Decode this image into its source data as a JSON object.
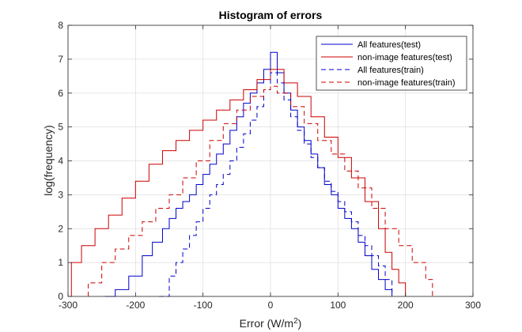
{
  "chart_data": {
    "type": "line",
    "title": "Histogram of errors",
    "xlabel": "Error (W/m",
    "xlabel_sup": "2",
    "xlabel_end": ")",
    "ylabel": "log(frequency)",
    "xlim": [
      -300,
      300
    ],
    "ylim": [
      0,
      8
    ],
    "xticks": [
      -300,
      -200,
      -100,
      0,
      100,
      200,
      300
    ],
    "yticks": [
      0,
      1,
      2,
      3,
      4,
      5,
      6,
      7,
      8
    ],
    "grid": true,
    "legend_position": "top-right",
    "series": [
      {
        "name": "All features(test)",
        "color": "#0000cc",
        "dash": "solid",
        "x": [
          -245,
          -230,
          -210,
          -190,
          -175,
          -160,
          -150,
          -140,
          -130,
          -120,
          -110,
          -100,
          -90,
          -80,
          -70,
          -60,
          -50,
          -40,
          -30,
          -20,
          -10,
          0,
          10,
          20,
          30,
          40,
          50,
          60,
          70,
          80,
          90,
          100,
          110,
          120,
          130,
          140,
          150,
          160,
          170,
          180
        ],
        "y": [
          0.0,
          0.2,
          0.6,
          1.2,
          1.6,
          2.0,
          2.3,
          2.6,
          2.8,
          3.0,
          3.3,
          3.6,
          3.9,
          4.2,
          4.5,
          4.9,
          5.3,
          5.7,
          6.0,
          6.3,
          6.7,
          7.2,
          6.6,
          6.0,
          5.5,
          5.0,
          4.6,
          4.2,
          3.8,
          3.3,
          3.0,
          2.6,
          2.3,
          2.0,
          1.6,
          1.2,
          0.8,
          0.5,
          0.2,
          0.0
        ]
      },
      {
        "name": "non-image features(test)",
        "color": "#cc0000",
        "dash": "solid",
        "x": [
          -295,
          -280,
          -260,
          -240,
          -220,
          -200,
          -180,
          -160,
          -140,
          -120,
          -100,
          -80,
          -60,
          -40,
          -20,
          0,
          20,
          40,
          60,
          80,
          100,
          120,
          140,
          160,
          170,
          180,
          190,
          200
        ],
        "y": [
          1.0,
          1.5,
          2.0,
          2.4,
          2.9,
          3.4,
          3.9,
          4.3,
          4.6,
          4.9,
          5.2,
          5.5,
          5.8,
          6.1,
          6.4,
          6.7,
          6.3,
          5.9,
          5.3,
          4.7,
          4.1,
          3.5,
          2.8,
          2.0,
          1.3,
          0.8,
          0.4,
          0.0
        ]
      },
      {
        "name": "All features(train)",
        "color": "#0000cc",
        "dash": "dashed",
        "x": [
          -165,
          -150,
          -140,
          -130,
          -120,
          -110,
          -100,
          -90,
          -80,
          -70,
          -60,
          -50,
          -40,
          -30,
          -20,
          -10,
          0,
          10,
          20,
          30,
          40,
          50,
          60,
          70,
          80,
          90,
          100,
          110,
          120,
          130,
          140,
          150,
          160,
          170,
          180
        ],
        "y": [
          0.0,
          0.6,
          1.0,
          1.4,
          1.8,
          2.2,
          2.6,
          3.0,
          3.3,
          3.6,
          4.0,
          4.4,
          4.8,
          5.2,
          5.6,
          6.1,
          6.6,
          6.3,
          5.8,
          5.3,
          4.9,
          4.5,
          4.1,
          3.8,
          3.4,
          3.1,
          2.8,
          2.5,
          2.2,
          1.8,
          1.5,
          1.2,
          0.9,
          0.5,
          0.0
        ]
      },
      {
        "name": "non-image features(train)",
        "color": "#cc0000",
        "dash": "dashed",
        "x": [
          -270,
          -250,
          -230,
          -210,
          -190,
          -170,
          -150,
          -130,
          -110,
          -90,
          -70,
          -50,
          -30,
          -10,
          0,
          10,
          30,
          50,
          70,
          90,
          110,
          130,
          150,
          170,
          190,
          210,
          230,
          240
        ],
        "y": [
          0.4,
          1.0,
          1.4,
          1.8,
          2.2,
          2.6,
          3.0,
          3.5,
          4.0,
          4.6,
          5.1,
          5.5,
          5.9,
          6.1,
          6.2,
          6.0,
          5.6,
          5.1,
          4.6,
          4.2,
          3.7,
          3.2,
          2.6,
          2.0,
          1.5,
          1.0,
          0.5,
          0.0
        ]
      }
    ]
  }
}
